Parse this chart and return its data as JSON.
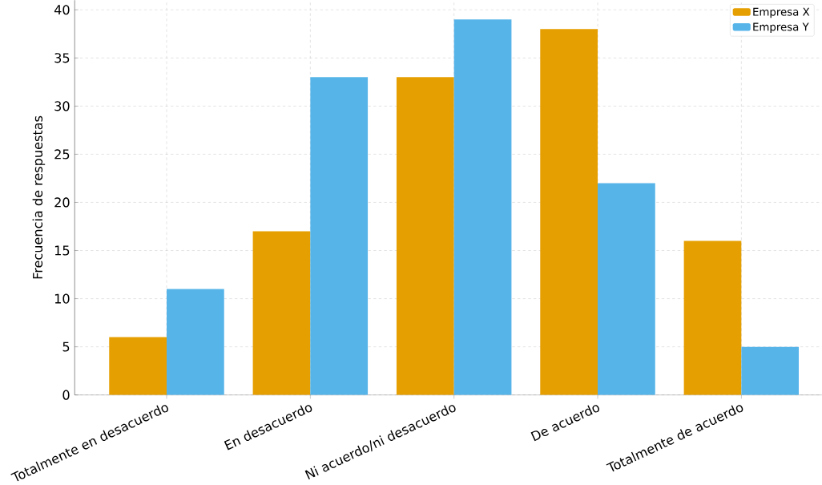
{
  "chart_data": {
    "type": "bar",
    "ylabel": "Frecuencia de respuestas",
    "categories": [
      "Totalmente en desacuerdo",
      "En desacuerdo",
      "Ni acuerdo/ni desacuerdo",
      "De acuerdo",
      "Totalmente de acuerdo"
    ],
    "series": [
      {
        "name": "Empresa X",
        "color": "#e69f00",
        "values": [
          6,
          17,
          33,
          38,
          16
        ]
      },
      {
        "name": "Empresa Y",
        "color": "#56b4e9",
        "values": [
          11,
          33,
          39,
          22,
          5
        ]
      }
    ],
    "ylim": [
      0,
      41
    ],
    "yticks": [
      0,
      5,
      10,
      15,
      20,
      25,
      30,
      35,
      40
    ],
    "grid": true,
    "legend": "top right"
  }
}
